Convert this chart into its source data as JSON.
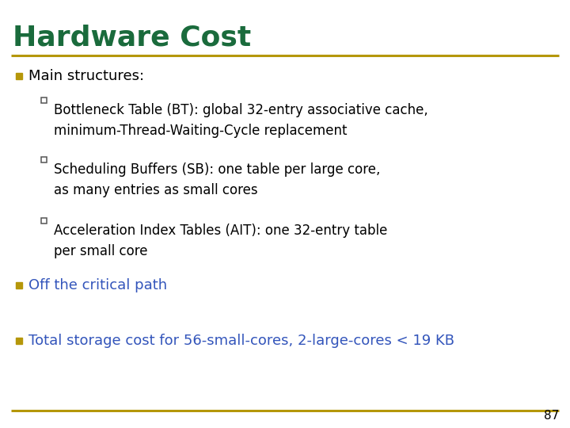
{
  "title": "Hardware Cost",
  "title_color": "#1a6b3c",
  "title_fontsize": 26,
  "separator_color": "#b5970a",
  "background_color": "#ffffff",
  "bullet_color": "#b5970a",
  "sub_bullet_color": "#555555",
  "text_color": "#000000",
  "colored_text_color": "#3355bb",
  "page_number": "87",
  "bullet1_text": "Main structures:",
  "sub_bullets": [
    "Bottleneck Table (BT): global 32-entry associative cache,\nminimum-Thread-Waiting-Cycle replacement",
    "Scheduling Buffers (SB): one table per large core,\nas many entries as small cores",
    "Acceleration Index Tables (AIT): one 32-entry table\nper small core"
  ],
  "bullet2_text": "Off the critical path",
  "bullet3_text": "Total storage cost for 56-small-cores, 2-large-cores < 19 KB",
  "fig_width": 7.2,
  "fig_height": 5.4,
  "dpi": 100
}
